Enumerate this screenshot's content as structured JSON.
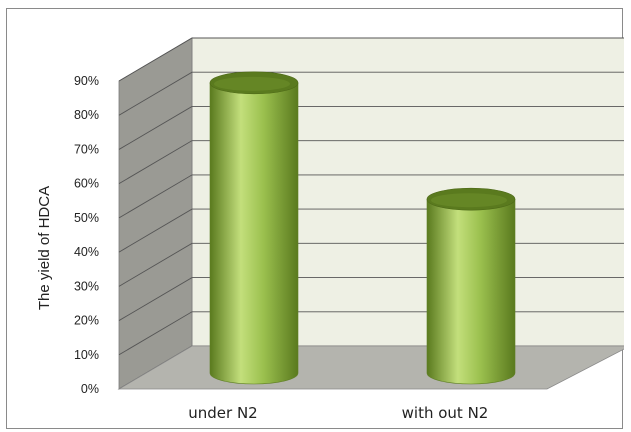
{
  "chart_data": {
    "type": "bar",
    "style": "3d-cylinder",
    "categories": [
      "under N2",
      "with out N2"
    ],
    "values": [
      0.88,
      0.54
    ],
    "ylabel": "The yield of HDCA",
    "xlabel": "",
    "ylim": [
      0,
      0.9
    ],
    "yticks": [
      "0%",
      "10%",
      "20%",
      "30%",
      "40%",
      "50%",
      "60%",
      "70%",
      "80%",
      "90%"
    ],
    "grid": true,
    "legend": "none",
    "colors": {
      "bar": "#9cc14f",
      "bar_dark": "#5a7a1e",
      "bar_light": "#c3df7c",
      "back_wall": "#eef0e4",
      "side_wall": "#9a9a94",
      "floor": "#b4b4ae",
      "gridline": "#555555"
    }
  }
}
